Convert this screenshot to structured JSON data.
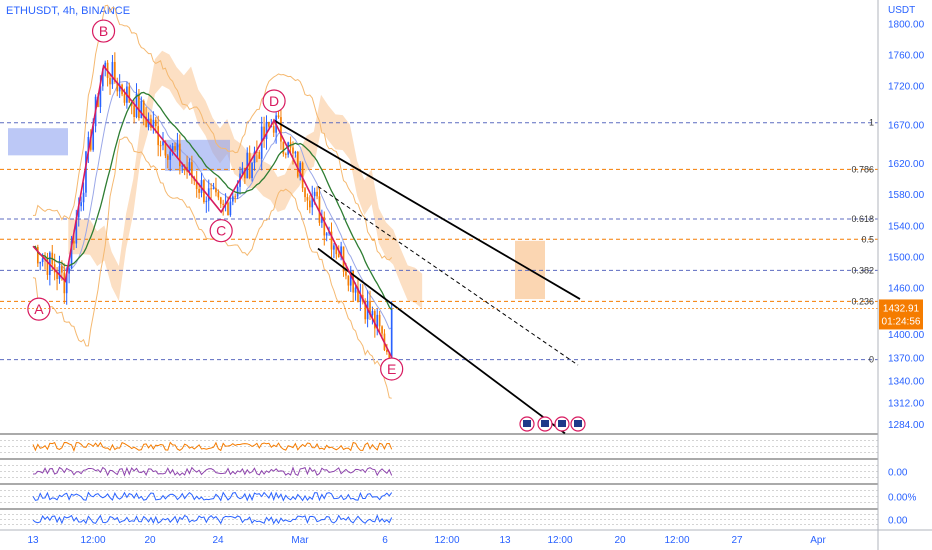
{
  "header": {
    "symbol_line": "ETHUSDT, 4h, BINANCE",
    "currency": "USDT"
  },
  "chart_data": {
    "type": "candlestick",
    "ylim": [
      1270,
      1830
    ],
    "price_ticks": [
      "1800.00",
      "1760.00",
      "1720.00",
      "1670.00",
      "1620.00",
      "1580.00",
      "1540.00",
      "1500.00",
      "1460.00",
      "1400.00",
      "1370.00",
      "1340.00",
      "1312.00",
      "1284.00"
    ],
    "price_tick_values": [
      1800,
      1760,
      1720,
      1670,
      1620,
      1580,
      1540,
      1500,
      1460,
      1400,
      1370,
      1340,
      1312,
      1284
    ],
    "time_ticks": [
      {
        "label": "13",
        "x": 0
      },
      {
        "label": "12:00",
        "x": 1
      },
      {
        "label": "20",
        "x": 2
      },
      {
        "label": "24",
        "x": 3
      },
      {
        "label": "Mar",
        "x": 4
      },
      {
        "label": "6",
        "x": 5
      },
      {
        "label": "12:00",
        "x": 6
      },
      {
        "label": "13",
        "x": 7
      },
      {
        "label": "12:00",
        "x": 8
      },
      {
        "label": "20",
        "x": 9
      },
      {
        "label": "12:00",
        "x": 10
      },
      {
        "label": "27",
        "x": 11
      },
      {
        "label": "Apr",
        "x": 12
      }
    ],
    "fib_levels": [
      {
        "label": "1",
        "value": 1672
      },
      {
        "label": "0.786",
        "value": 1612
      },
      {
        "label": "0.618",
        "value": 1548
      },
      {
        "label": "0.5",
        "value": 1522
      },
      {
        "label": "0.382",
        "value": 1482
      },
      {
        "label": "0.236",
        "value": 1442
      },
      {
        "label": "0",
        "value": 1367
      }
    ],
    "current_price": {
      "price": "1432.91",
      "countdown": "01:24:56",
      "value": 1432.91
    },
    "wave_labels": [
      {
        "label": "A",
        "t": 0.1,
        "price": 1432
      },
      {
        "label": "B",
        "t": 1.2,
        "price": 1790
      },
      {
        "label": "C",
        "t": 3.2,
        "price": 1533
      },
      {
        "label": "D",
        "t": 4.1,
        "price": 1700
      },
      {
        "label": "E",
        "t": 6.1,
        "price": 1355
      }
    ],
    "wave_path": [
      [
        0,
        1513
      ],
      [
        0.55,
        1468
      ],
      [
        1.2,
        1745
      ],
      [
        3.2,
        1557
      ],
      [
        4.1,
        1675
      ],
      [
        6.1,
        1370
      ]
    ],
    "sub_panes": [
      {
        "name": "pane-1",
        "label": ""
      },
      {
        "name": "pane-2",
        "label": "0.00"
      },
      {
        "name": "pane-3",
        "label": "0.00%"
      },
      {
        "name": "pane-4",
        "label": "0.00"
      }
    ],
    "colors": {
      "up": "#2962ff",
      "down": "#f57c00",
      "wave": "#d81b60",
      "fib_blue": "#5c6bc0",
      "fib_orange": "#f57c00",
      "cloud_blue": "#90a4f0",
      "cloud_orange": "#f9c491",
      "ma_green": "#2e7d32",
      "accent": "#2962ff"
    }
  }
}
